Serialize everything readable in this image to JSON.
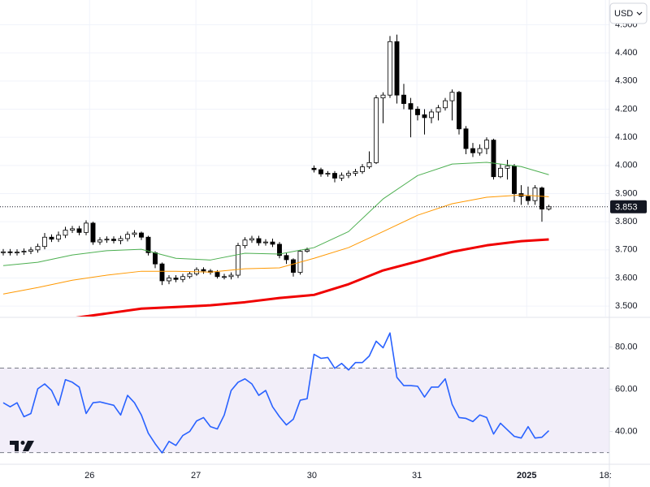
{
  "toolbar": {
    "currency": "USD"
  },
  "chart_data": [
    {
      "type": "candlestick",
      "x": [
        0,
        1,
        2,
        3,
        4,
        5,
        6,
        7,
        8,
        9,
        10,
        11,
        12,
        13,
        14,
        15,
        16,
        17,
        18,
        19,
        20,
        21,
        22,
        23,
        24,
        25,
        26,
        27,
        28,
        29,
        30,
        31,
        32,
        33,
        34,
        35,
        36,
        37,
        38,
        39,
        40,
        41,
        42,
        43,
        44,
        45,
        46,
        47,
        48,
        49,
        50,
        51,
        52,
        53,
        54,
        55,
        56,
        57,
        58,
        59,
        60,
        61,
        62,
        63,
        64,
        65,
        66,
        67,
        68,
        69,
        70,
        71,
        72,
        73,
        74,
        75,
        76,
        77,
        78,
        79
      ],
      "open": [
        3.69,
        3.693,
        3.69,
        3.692,
        3.695,
        3.7,
        3.712,
        3.745,
        3.738,
        3.752,
        3.77,
        3.775,
        3.762,
        3.795,
        3.728,
        3.735,
        3.738,
        3.733,
        3.74,
        3.755,
        3.76,
        3.745,
        3.69,
        3.65,
        3.59,
        3.6,
        3.595,
        3.605,
        3.615,
        3.63,
        3.625,
        3.62,
        3.605,
        3.605,
        3.61,
        3.715,
        3.735,
        3.74,
        3.725,
        3.728,
        3.72,
        3.68,
        3.665,
        3.62,
        3.695,
        3.99,
        3.985,
        3.97,
        3.972,
        3.955,
        3.965,
        3.972,
        3.978,
        3.995,
        4.01,
        4.24,
        4.25,
        4.44,
        4.25,
        4.22,
        4.2,
        4.18,
        4.17,
        4.19,
        4.205,
        4.23,
        4.26,
        4.13,
        4.06,
        4.045,
        4.06,
        4.09,
        3.96,
        3.99,
        3.998,
        3.9,
        3.89,
        3.875,
        3.92,
        3.845
      ],
      "high": [
        3.703,
        3.703,
        3.702,
        3.705,
        3.71,
        3.722,
        3.76,
        3.755,
        3.765,
        3.782,
        3.785,
        3.785,
        3.805,
        3.8,
        3.745,
        3.748,
        3.748,
        3.75,
        3.765,
        3.77,
        3.765,
        3.75,
        3.695,
        3.655,
        3.61,
        3.61,
        3.615,
        3.622,
        3.638,
        3.638,
        3.632,
        3.628,
        3.615,
        3.62,
        3.725,
        3.745,
        3.75,
        3.75,
        3.738,
        3.74,
        3.728,
        3.69,
        3.67,
        3.7,
        3.708,
        4.0,
        3.992,
        3.98,
        3.98,
        3.975,
        3.982,
        3.988,
        4.005,
        4.05,
        4.25,
        4.26,
        4.46,
        4.465,
        4.29,
        4.24,
        4.21,
        4.2,
        4.2,
        4.215,
        4.24,
        4.27,
        4.265,
        4.14,
        4.08,
        4.075,
        4.1,
        4.095,
        4.005,
        4.02,
        4.005,
        3.93,
        3.925,
        3.93,
        3.925,
        3.86
      ],
      "low": [
        3.68,
        3.68,
        3.68,
        3.682,
        3.685,
        3.69,
        3.702,
        3.728,
        3.728,
        3.742,
        3.76,
        3.752,
        3.752,
        3.718,
        3.718,
        3.725,
        3.723,
        3.72,
        3.73,
        3.745,
        3.735,
        3.68,
        3.635,
        3.575,
        3.578,
        3.585,
        3.585,
        3.598,
        3.608,
        3.615,
        3.612,
        3.598,
        3.595,
        3.595,
        3.6,
        3.705,
        3.725,
        3.715,
        3.715,
        3.71,
        3.67,
        3.65,
        3.605,
        3.612,
        3.69,
        3.975,
        3.96,
        3.96,
        3.94,
        3.945,
        3.955,
        3.962,
        3.97,
        3.988,
        4.005,
        4.15,
        4.24,
        4.22,
        4.2,
        4.1,
        4.16,
        4.11,
        4.15,
        4.16,
        4.195,
        4.16,
        4.11,
        4.04,
        4.03,
        4.035,
        4.04,
        3.95,
        3.955,
        3.95,
        3.87,
        3.86,
        3.86,
        3.86,
        3.8,
        3.84
      ],
      "close": [
        3.693,
        3.69,
        3.692,
        3.695,
        3.7,
        3.712,
        3.745,
        3.738,
        3.752,
        3.77,
        3.775,
        3.762,
        3.795,
        3.728,
        3.735,
        3.738,
        3.733,
        3.74,
        3.755,
        3.76,
        3.745,
        3.69,
        3.65,
        3.59,
        3.6,
        3.595,
        3.605,
        3.615,
        3.63,
        3.625,
        3.62,
        3.605,
        3.605,
        3.61,
        3.715,
        3.735,
        3.74,
        3.725,
        3.728,
        3.72,
        3.68,
        3.665,
        3.62,
        3.695,
        3.7,
        3.985,
        3.97,
        3.972,
        3.955,
        3.965,
        3.972,
        3.978,
        3.995,
        4.01,
        4.24,
        4.25,
        4.44,
        4.25,
        4.22,
        4.2,
        4.18,
        4.17,
        4.19,
        4.205,
        4.23,
        4.26,
        4.13,
        4.06,
        4.045,
        4.06,
        4.09,
        3.96,
        3.99,
        3.998,
        3.9,
        3.89,
        3.875,
        3.92,
        3.845,
        3.853
      ],
      "up_color": "#ffffff",
      "down_color": "#000000",
      "wick_color": "#000000",
      "series": [
        {
          "color": "#4caf50",
          "width": 1,
          "x": [
            0,
            5,
            10,
            15,
            20,
            25,
            30,
            35,
            40,
            45,
            50,
            55,
            60,
            65,
            70,
            75,
            79
          ],
          "values": [
            3.644,
            3.656,
            3.682,
            3.697,
            3.702,
            3.67,
            3.664,
            3.688,
            3.685,
            3.708,
            3.765,
            3.881,
            3.964,
            4.005,
            4.011,
            3.996,
            3.967
          ]
        },
        {
          "color": "#ff9800",
          "width": 1,
          "x": [
            0,
            5,
            10,
            15,
            20,
            25,
            30,
            35,
            40,
            45,
            50,
            55,
            60,
            65,
            70,
            75,
            79
          ],
          "values": [
            3.543,
            3.566,
            3.592,
            3.61,
            3.624,
            3.624,
            3.621,
            3.633,
            3.636,
            3.67,
            3.708,
            3.765,
            3.823,
            3.864,
            3.887,
            3.895,
            3.889
          ]
        },
        {
          "color": "#f00000",
          "width": 3,
          "x": [
            10,
            15,
            20,
            25,
            30,
            35,
            40,
            45,
            50,
            55,
            60,
            65,
            70,
            75,
            79
          ],
          "values": [
            3.457,
            3.474,
            3.491,
            3.497,
            3.503,
            3.514,
            3.529,
            3.54,
            3.578,
            3.627,
            3.659,
            3.693,
            3.716,
            3.731,
            3.737
          ]
        }
      ],
      "last_price": 3.853,
      "xlim": [
        -0.47,
        93.65
      ],
      "ylim": [
        3.463,
        4.588
      ],
      "yticks": [
        {
          "value": 3.5,
          "label": "3.500"
        },
        {
          "value": 3.6,
          "label": "3.600"
        },
        {
          "value": 3.7,
          "label": "3.700"
        },
        {
          "value": 3.8,
          "label": "3.800"
        },
        {
          "value": 3.9,
          "label": "3.900"
        },
        {
          "value": 4.0,
          "label": "4.000"
        },
        {
          "value": 4.1,
          "label": "4.100"
        },
        {
          "value": 4.2,
          "label": "4.200"
        },
        {
          "value": 4.3,
          "label": "4.300"
        },
        {
          "value": 4.4,
          "label": "4.400"
        },
        {
          "value": 4.5,
          "label": "4.500"
        }
      ],
      "xticks": [
        {
          "value": 12.5,
          "label": "26"
        },
        {
          "value": 27.9,
          "label": "27"
        },
        {
          "value": 44.7,
          "label": "30"
        },
        {
          "value": 59.9,
          "label": "31"
        },
        {
          "value": 75.8,
          "label": "2025"
        },
        {
          "value": 87.2,
          "label": "18:"
        }
      ],
      "grid": true
    },
    {
      "type": "line",
      "x": [
        0,
        1,
        2,
        3,
        4,
        5,
        6,
        7,
        8,
        9,
        10,
        11,
        12,
        13,
        14,
        15,
        16,
        17,
        18,
        19,
        20,
        21,
        22,
        23,
        24,
        25,
        26,
        27,
        28,
        29,
        30,
        31,
        32,
        33,
        34,
        35,
        36,
        37,
        38,
        39,
        40,
        41,
        42,
        43,
        44,
        45,
        46,
        47,
        48,
        49,
        50,
        51,
        52,
        53,
        54,
        55,
        56,
        57,
        58,
        59,
        60,
        61,
        62,
        63,
        64,
        65,
        66,
        67,
        68,
        69,
        70,
        71,
        72,
        73,
        74,
        75,
        76,
        77,
        78,
        79
      ],
      "series": [
        {
          "color": "#2962ff",
          "values": [
            53.6,
            51.7,
            53.6,
            47.0,
            48.5,
            60.2,
            62.5,
            59.4,
            52.4,
            64.5,
            63.3,
            61.0,
            48.5,
            53.6,
            54.0,
            53.2,
            52.4,
            47.8,
            57.1,
            53.6,
            47.8,
            39.2,
            34.2,
            29.9,
            35.3,
            33.4,
            38.1,
            40.0,
            45.0,
            46.6,
            42.3,
            41.2,
            47.8,
            59.4,
            63.3,
            64.9,
            62.5,
            57.1,
            59.4,
            51.7,
            47.0,
            43.1,
            45.8,
            54.8,
            55.5,
            76.5,
            74.6,
            75.0,
            69.9,
            72.2,
            69.1,
            72.6,
            72.6,
            75.7,
            82.7,
            79.6,
            86.6,
            65.6,
            61.7,
            61.7,
            61.4,
            56.3,
            61.0,
            61.0,
            64.9,
            52.8,
            46.6,
            46.2,
            44.7,
            47.8,
            46.6,
            38.8,
            43.9,
            40.8,
            37.7,
            36.9,
            42.3,
            36.9,
            37.3,
            40.4
          ]
        }
      ],
      "bands": [
        30,
        70
      ],
      "band_color": "#7e57c2",
      "xlim": [
        -0.47,
        93.65
      ],
      "ylim": [
        24.5,
        93.6
      ],
      "yticks": [
        {
          "value": 40,
          "label": "40.00"
        },
        {
          "value": 60,
          "label": "60.00"
        },
        {
          "value": 80,
          "label": "80.00"
        }
      ]
    }
  ]
}
